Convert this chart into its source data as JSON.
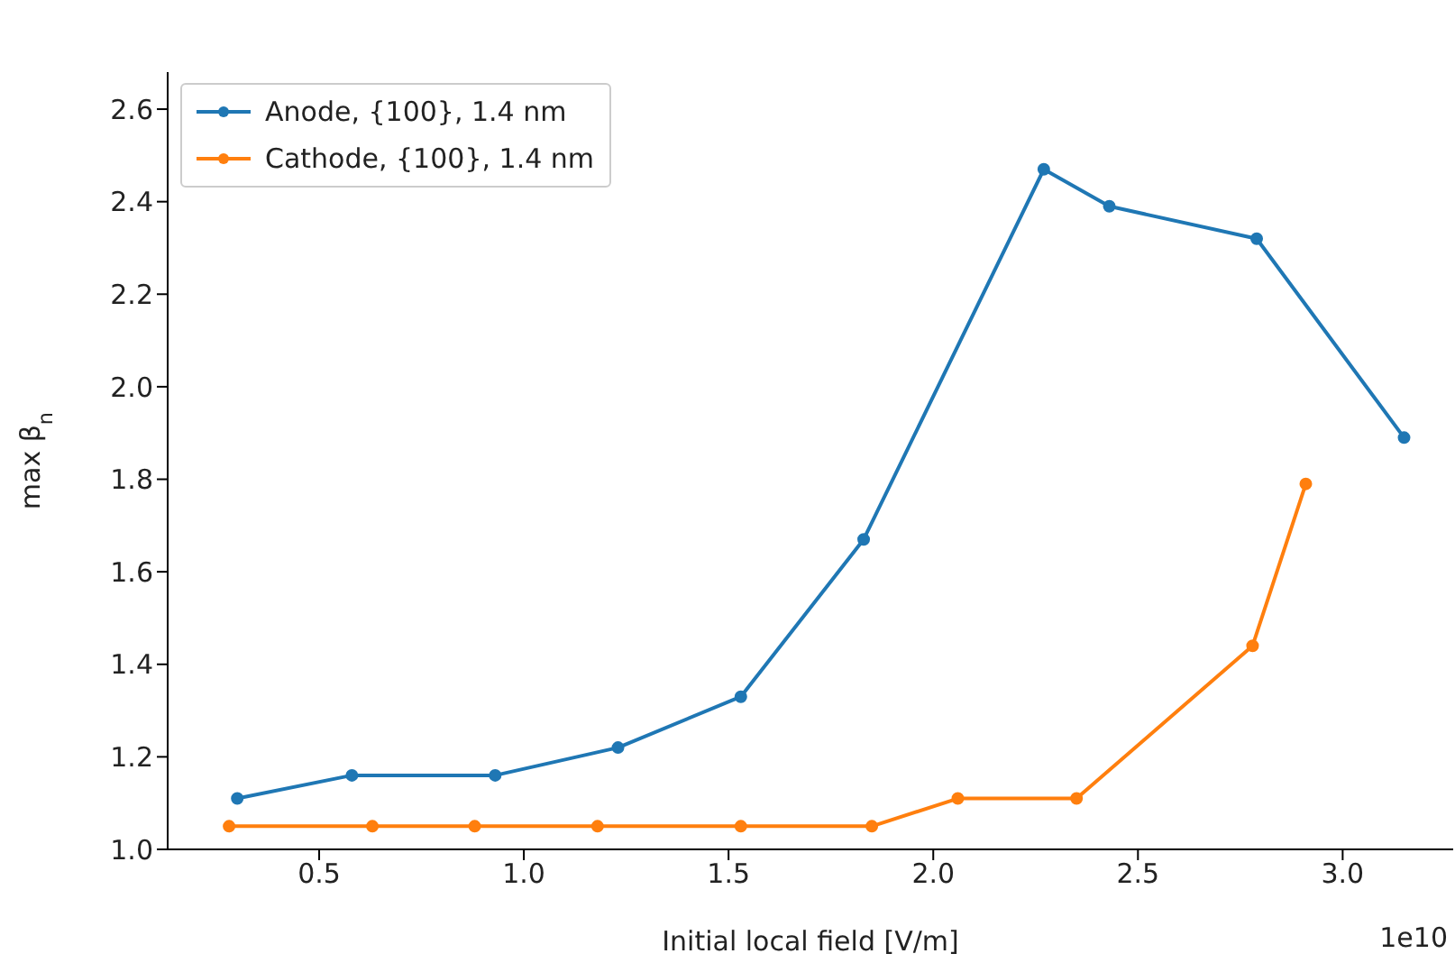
{
  "chart_data": {
    "type": "line",
    "xlabel": "Initial local field [V/m]",
    "ylabel": "max β$_{n}$",
    "annotations": [
      "1e10"
    ],
    "xlim": [
      0.13,
      3.27
    ],
    "xticks": [
      0.5,
      {
        "value": 1,
        "label": "1.0"
      },
      1.5,
      {
        "value": 2,
        "label": "2.0"
      },
      2.5,
      {
        "value": 3,
        "label": "3.0"
      }
    ],
    "ylim": [
      1.0,
      2.68
    ],
    "yticks": [
      {
        "value": 1,
        "label": "1.0"
      },
      1.2,
      1.4,
      1.6,
      1.8,
      {
        "value": 2,
        "label": "2.0"
      },
      2.2,
      2.4,
      2.6
    ],
    "grid": false,
    "legend": "top left",
    "marker": "circle",
    "line_style": "solid",
    "series": [
      {
        "name": "Anode, {100}, 1.4 nm",
        "color": "#1f77b4",
        "x": [
          0.3,
          0.58,
          0.93,
          1.23,
          1.53,
          1.83,
          2.27,
          2.43,
          2.79,
          3.15
        ],
        "values": [
          1.11,
          1.16,
          1.16,
          1.22,
          1.33,
          1.67,
          2.47,
          2.39,
          2.32,
          1.89
        ]
      },
      {
        "name": "Cathode, {100}, 1.4 nm",
        "color": "#ff7f0e",
        "x": [
          0.28,
          0.63,
          0.88,
          1.18,
          1.53,
          1.85,
          2.06,
          2.35,
          2.78,
          2.91
        ],
        "values": [
          1.05,
          1.05,
          1.05,
          1.05,
          1.05,
          1.05,
          1.11,
          1.11,
          1.44,
          1.79
        ]
      }
    ]
  }
}
